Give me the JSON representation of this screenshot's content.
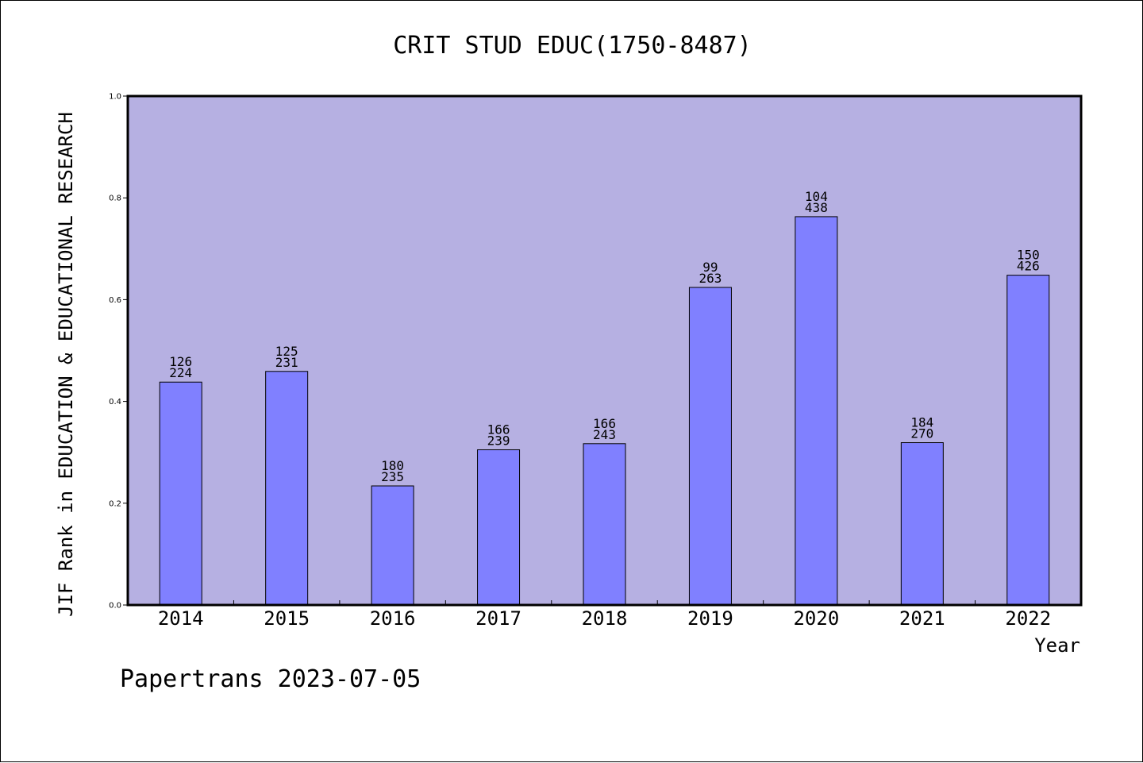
{
  "chart_data": {
    "type": "bar",
    "title": "CRIT STUD EDUC(1750-8487)",
    "xlabel": "Year",
    "ylabel": "JIF Rank in EDUCATION & EDUCATIONAL RESEARCH",
    "ylim": [
      0.0,
      1.0
    ],
    "yticks": [
      "0.0",
      "0.2",
      "0.4",
      "0.6",
      "0.8",
      "1.0"
    ],
    "categories": [
      "2014",
      "2015",
      "2016",
      "2017",
      "2018",
      "2019",
      "2020",
      "2021",
      "2022"
    ],
    "values": [
      0.438,
      0.459,
      0.234,
      0.305,
      0.317,
      0.624,
      0.763,
      0.319,
      0.648
    ],
    "labels": [
      {
        "rank": "126",
        "total": "224"
      },
      {
        "rank": "125",
        "total": "231"
      },
      {
        "rank": "180",
        "total": "235"
      },
      {
        "rank": "166",
        "total": "239"
      },
      {
        "rank": "166",
        "total": "243"
      },
      {
        "rank": "99",
        "total": "263"
      },
      {
        "rank": "104",
        "total": "438"
      },
      {
        "rank": "184",
        "total": "270"
      },
      {
        "rank": "150",
        "total": "426"
      }
    ],
    "grid": false,
    "colors": {
      "plot_background": "#b6b0e2",
      "bar_fill": "#8080ff",
      "bar_stroke": "#000000"
    }
  },
  "footer": "Papertrans 2023-07-05"
}
